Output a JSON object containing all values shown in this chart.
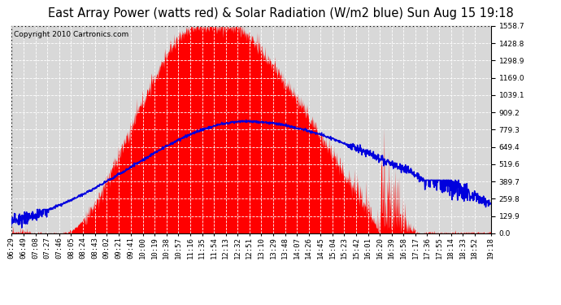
{
  "title": "East Array Power (watts red) & Solar Radiation (W/m2 blue) Sun Aug 15 19:18",
  "copyright": "Copyright 2010 Cartronics.com",
  "ymin": 0.0,
  "ymax": 1558.7,
  "yticks": [
    0.0,
    129.9,
    259.8,
    389.7,
    519.6,
    649.4,
    779.3,
    909.2,
    1039.1,
    1169.0,
    1298.9,
    1428.8,
    1558.7
  ],
  "xtick_labels": [
    "06:29",
    "06:49",
    "07:08",
    "07:27",
    "07:46",
    "08:05",
    "08:24",
    "08:43",
    "09:02",
    "09:21",
    "09:41",
    "10:00",
    "10:19",
    "10:38",
    "10:57",
    "11:16",
    "11:35",
    "11:54",
    "12:13",
    "12:32",
    "12:51",
    "13:10",
    "13:29",
    "13:48",
    "14:07",
    "14:26",
    "14:45",
    "15:04",
    "15:23",
    "15:42",
    "16:01",
    "16:20",
    "16:39",
    "16:58",
    "17:17",
    "17:36",
    "17:55",
    "18:14",
    "18:33",
    "18:52",
    "19:18"
  ],
  "background_color": "#ffffff",
  "plot_bg_color": "#d8d8d8",
  "grid_color": "#ffffff",
  "fill_color": "#ff0000",
  "line_color": "#0000dd",
  "title_fontsize": 10.5,
  "copyright_fontsize": 6.5,
  "tick_fontsize": 6.5,
  "solar_peak": 840,
  "power_peak": 1558.7
}
